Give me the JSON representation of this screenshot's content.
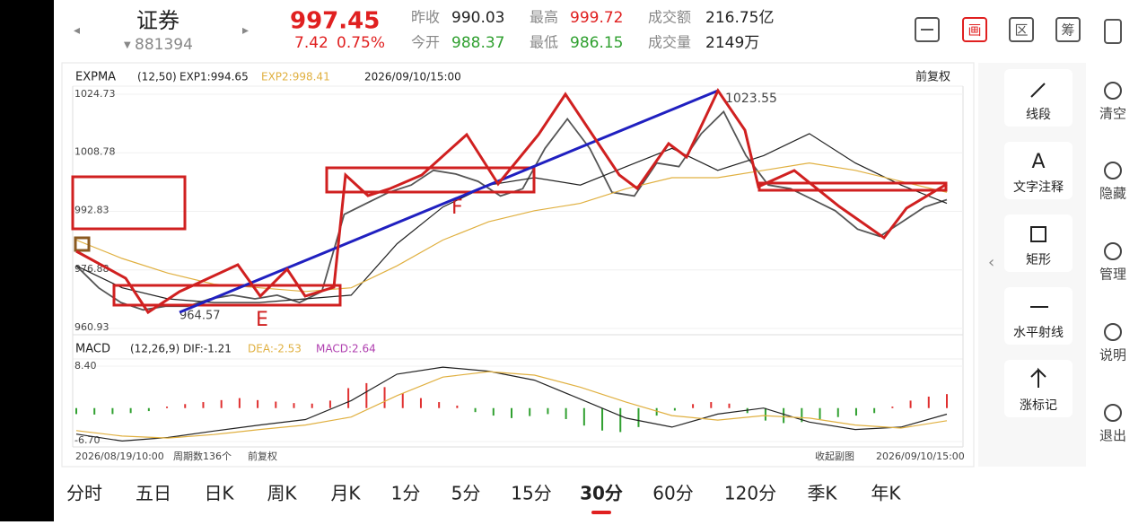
{
  "header": {
    "name": "证券",
    "code": "881394",
    "price": "997.45",
    "change": "7.42",
    "change_pct": "0.75%",
    "stats": [
      {
        "label": "昨收",
        "value": "990.03"
      },
      {
        "label": "今开",
        "value": "988.37"
      },
      {
        "label": "最高",
        "value": "999.72"
      },
      {
        "label": "最低",
        "value": "986.15"
      },
      {
        "label": "成交额",
        "value": "216.75亿"
      },
      {
        "label": "成交量",
        "value": "2149万"
      }
    ],
    "icons": [
      "画",
      "区",
      "筹"
    ]
  },
  "main_legend": {
    "name": "EXPMA",
    "params": "(12,50)",
    "exp1": "EXP1:994.65",
    "exp2": "EXP2:998.41",
    "date": "2026/09/10/15:00",
    "adjust": "前复权"
  },
  "sub_legend": {
    "name": "MACD",
    "params": "(12,26,9)",
    "dif": "DIF:-1.21",
    "dea": "DEA:-2.53",
    "macd": "MACD:2.64"
  },
  "chart_data": [
    {
      "type": "line",
      "ylim": [
        960.93,
        1024.73
      ],
      "yticks": [
        1024.73,
        1008.78,
        992.83,
        976.88,
        960.93
      ],
      "series": [
        {
          "color": "#555555",
          "values": [
            978,
            972,
            968,
            966,
            967,
            967,
            969,
            970,
            969,
            970,
            968,
            971,
            992,
            995,
            998,
            1000,
            1004,
            1003,
            1001,
            997,
            999,
            1010,
            1018,
            1010,
            998,
            997,
            1006,
            1005,
            1014,
            1020,
            1008,
            1000,
            999,
            996,
            993,
            988,
            986,
            990,
            994,
            996
          ]
        },
        {
          "color": "#222222",
          "values": [
            978,
            972,
            969,
            968,
            968,
            969,
            970,
            984,
            994,
            1000,
            1002,
            1000,
            1005,
            1010,
            1004,
            1008,
            1014,
            1006,
            1000,
            995
          ]
        },
        {
          "color": "#e0b040",
          "values": [
            985,
            980,
            976,
            973,
            972,
            971,
            972,
            978,
            985,
            990,
            993,
            995,
            999,
            1002,
            1002,
            1004,
            1006,
            1004,
            1001,
            998
          ]
        }
      ],
      "annotations": [
        "1023.55",
        "964.57",
        "E",
        "F"
      ]
    },
    {
      "type": "bar",
      "ylim": [
        -6.7,
        8.4
      ],
      "yticks": [
        {
          "value": 8.4,
          "label": "8.40"
        },
        {
          "value": -6.7,
          "label": "-6.70"
        }
      ],
      "values": [
        -1.2,
        -1.3,
        -1.2,
        -1.0,
        -0.6,
        0.3,
        0.8,
        1.2,
        1.6,
        2.0,
        1.6,
        1.3,
        1.0,
        0.9,
        1.5,
        4.0,
        5.0,
        4.2,
        3.0,
        2.0,
        1.2,
        0.5,
        -0.8,
        -1.5,
        -2.0,
        -1.6,
        -1.2,
        -2.2,
        -3.5,
        -4.5,
        -4.8,
        -3.8,
        -1.5,
        -0.5,
        0.8,
        1.2,
        0.9,
        -1.0,
        -2.5,
        -3.0,
        -2.8,
        -2.2,
        -1.8,
        -1.5,
        -1.0,
        0.3,
        1.5,
        2.3,
        2.8
      ],
      "colors": {
        "up": "#e03030",
        "down": "#30a030"
      },
      "series": [
        {
          "color": "#222222",
          "values": [
            -5.2,
            -6.6,
            -5.9,
            -4.6,
            -3.4,
            -2.3,
            1.5,
            6.8,
            8.2,
            7.4,
            5.6,
            1.8,
            -2.0,
            -3.8,
            -1.2,
            0.0,
            -2.8,
            -4.3,
            -3.8,
            -1.21
          ]
        },
        {
          "color": "#e0b040",
          "values": [
            -4.5,
            -5.6,
            -6.0,
            -5.3,
            -4.3,
            -3.4,
            -1.8,
            2.5,
            6.2,
            7.3,
            6.6,
            4.2,
            1.2,
            -1.5,
            -2.4,
            -1.5,
            -2.0,
            -3.4,
            -4.0,
            -2.53
          ]
        }
      ]
    }
  ],
  "footer": {
    "start": "2026/08/19/10:00",
    "count": "周期数136个",
    "adjust": "前复权",
    "collapse": "收起副图",
    "end": "2026/09/10/15:00"
  },
  "tabs": [
    "分时",
    "五日",
    "日K",
    "周K",
    "月K",
    "1分",
    "5分",
    "15分",
    "30分",
    "60分",
    "120分",
    "季K",
    "年K"
  ],
  "tools": [
    "线段",
    "文字注释",
    "矩形",
    "水平射线",
    "涨标记"
  ],
  "tool_glyphs": [
    "A"
  ],
  "side_actions": [
    "清空",
    "隐藏",
    "管理",
    "说明",
    "退出"
  ]
}
